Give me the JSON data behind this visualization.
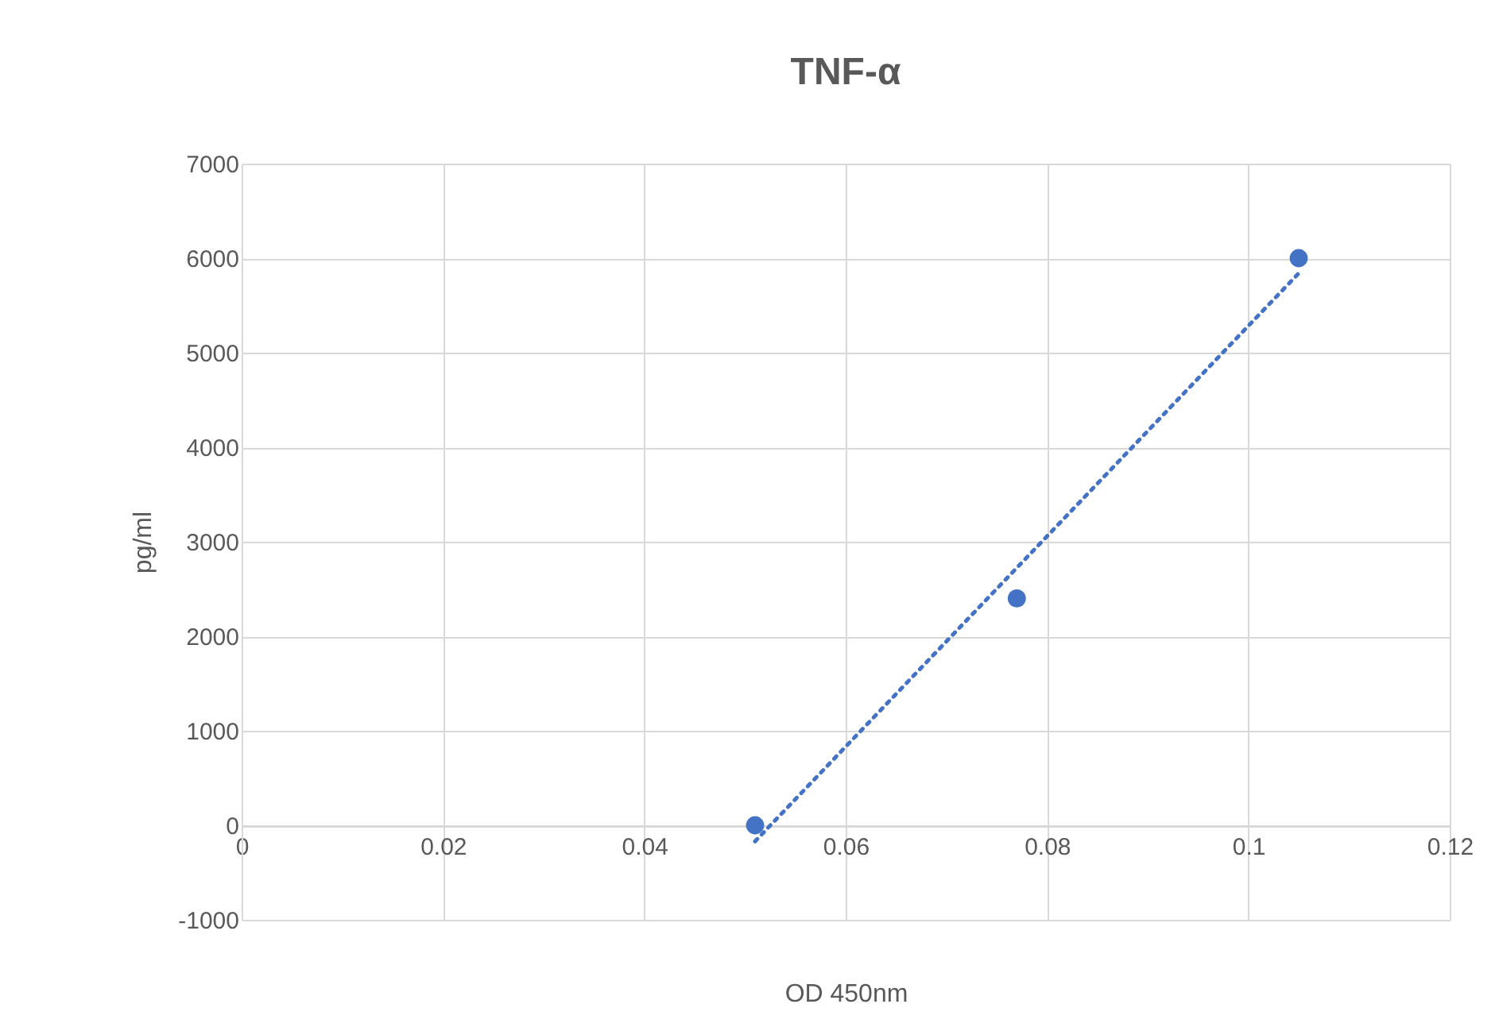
{
  "chart_data": {
    "type": "scatter",
    "title": "TNF-α",
    "xlabel": "OD 450nm",
    "ylabel": "pg/ml",
    "xlim": [
      0,
      0.12
    ],
    "xticks": [
      0,
      0.02,
      0.04,
      0.06,
      0.08,
      0.1,
      0.12
    ],
    "ylim": [
      -1000,
      7000
    ],
    "yticks": [
      -1000,
      0,
      1000,
      2000,
      3000,
      4000,
      5000,
      6000,
      7000
    ],
    "grid": true,
    "series": [
      {
        "color": "#4472c4",
        "marker": "circle",
        "x": [
          0.051,
          0.077,
          0.105
        ],
        "values": [
          0,
          2400,
          6000
        ]
      },
      {
        "type": "line",
        "color": "#4472c4",
        "line_style": "dotted",
        "x": [
          0.051,
          0.105
        ],
        "values": [
          -170,
          5840
        ]
      }
    ]
  }
}
